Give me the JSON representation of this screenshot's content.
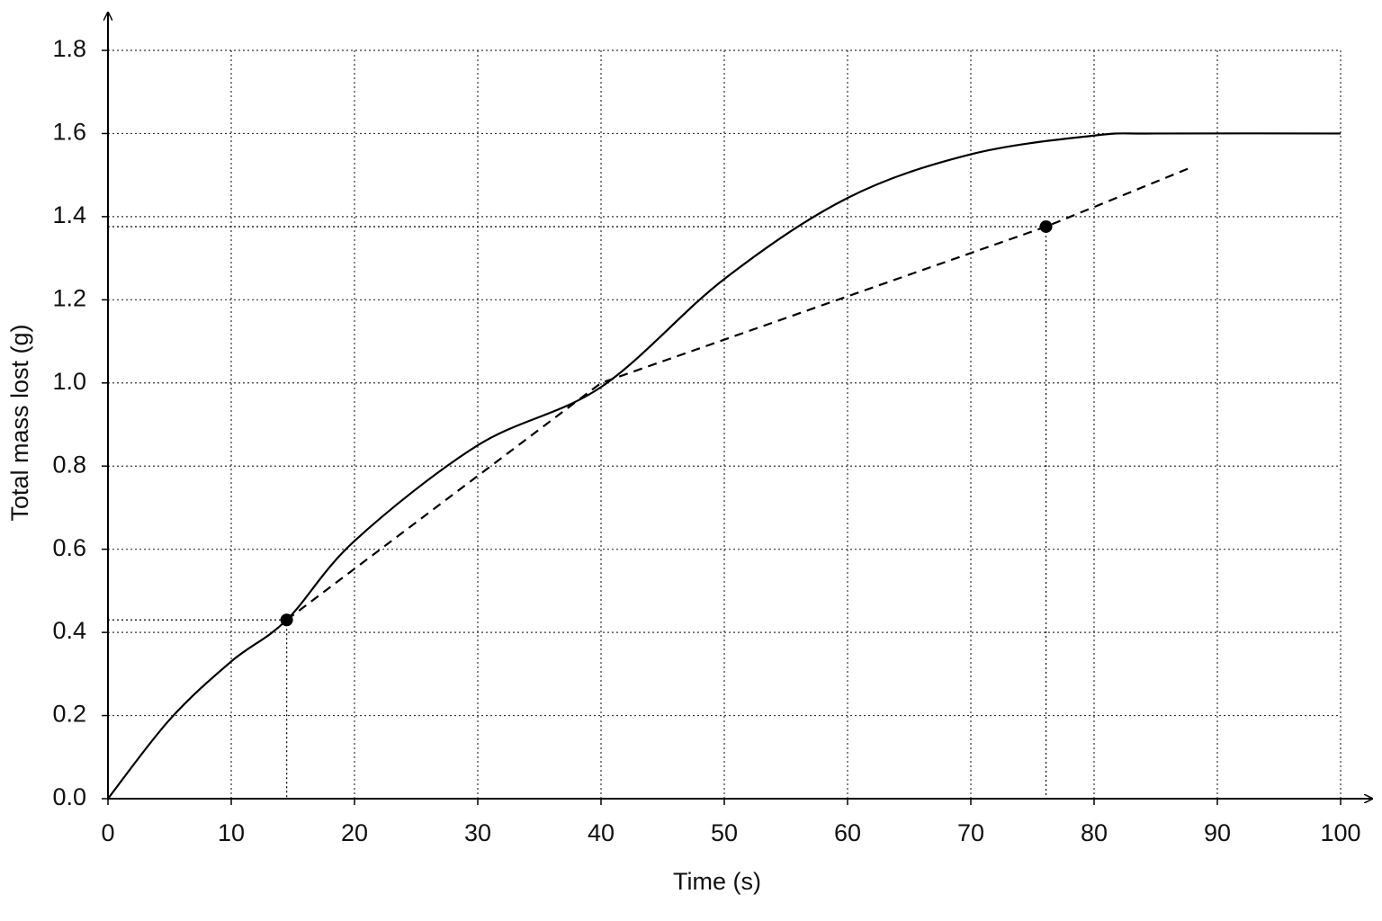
{
  "chart_data": {
    "type": "line",
    "xlabel": "Time (s)",
    "ylabel": "Total mass lost (g)",
    "xlim": [
      0,
      100
    ],
    "ylim": [
      0,
      1.8
    ],
    "xticks": [
      0,
      10,
      20,
      30,
      40,
      50,
      60,
      70,
      80,
      90,
      100
    ],
    "yticks": [
      {
        "value": 0,
        "label": "0.0"
      },
      0.2,
      0.4,
      0.6,
      0.8,
      {
        "value": 1,
        "label": "1.0"
      },
      1.2,
      1.4,
      1.6,
      1.8
    ],
    "grid": true,
    "color": "#000000",
    "lines": [
      {
        "style": "solid",
        "x": [
          0,
          5,
          10,
          14.5,
          20,
          30,
          40,
          50,
          60,
          70,
          80,
          85,
          100
        ],
        "values": [
          0,
          0.19,
          0.33,
          0.43,
          0.62,
          0.85,
          0.99,
          1.25,
          1.445,
          1.55,
          1.595,
          1.6,
          1.6
        ]
      },
      {
        "style": "dashed",
        "x": [
          14.5,
          40,
          76.1,
          88
        ],
        "values": [
          0.43,
          1.0,
          1.376,
          1.52
        ]
      }
    ],
    "points": {
      "x": [
        14.5,
        76.1
      ],
      "values": [
        0.43,
        1.376
      ]
    }
  }
}
